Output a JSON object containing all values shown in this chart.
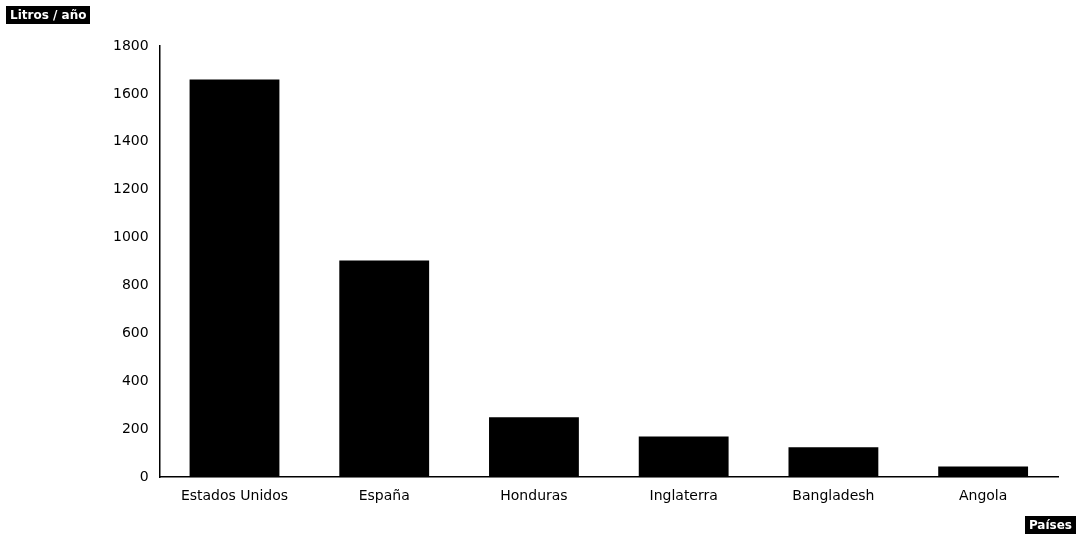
{
  "chart_data": {
    "type": "bar",
    "ylabel": "Litros / año",
    "xlabel": "Países",
    "categories": [
      "Estados Unidos",
      "España",
      "Honduras",
      "Inglaterra",
      "Bangladesh",
      "Angola"
    ],
    "values": [
      1660,
      905,
      250,
      170,
      125,
      45
    ],
    "color": "#000000",
    "ylim": [
      0,
      1800
    ],
    "yticks": [
      0,
      200,
      400,
      600,
      800,
      1000,
      1200,
      1400,
      1600,
      1800
    ],
    "grid": false,
    "legend": false
  }
}
